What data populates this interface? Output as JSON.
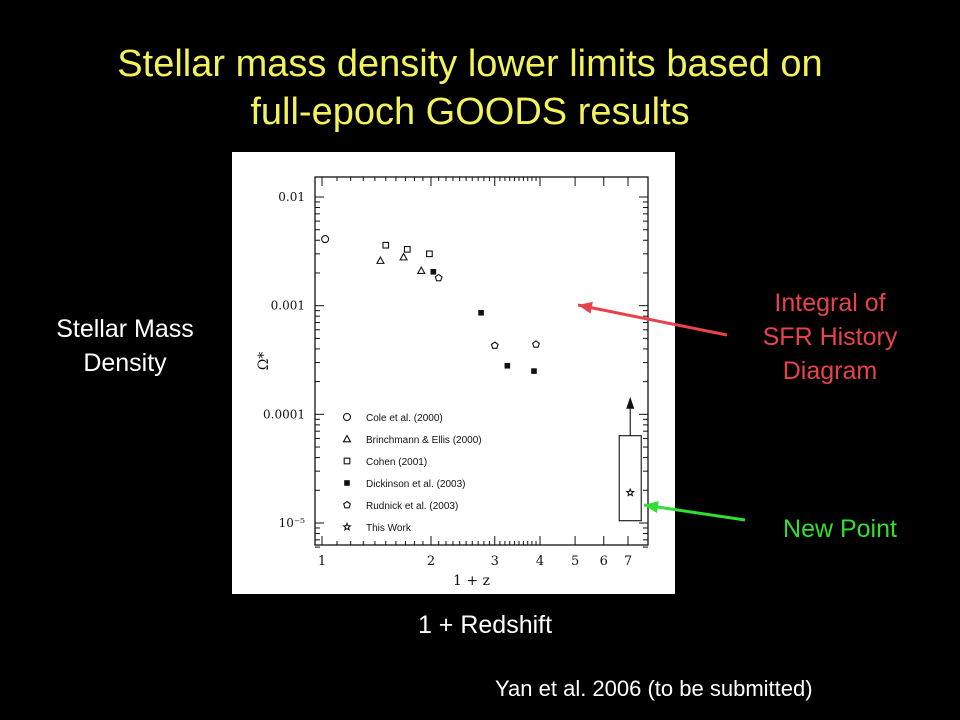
{
  "slide": {
    "title_line1": "Stellar mass density lower limits based on",
    "title_line2": "full-epoch GOODS results",
    "y_axis_label": [
      "Stellar Mass",
      "Density"
    ],
    "x_axis_label": "1 + Redshift",
    "callout_integral": [
      "Integral of",
      "SFR History",
      "Diagram"
    ],
    "callout_new_point": "New Point",
    "citation": "Yan et al. 2006 (to be submitted)",
    "colors": {
      "background": "#000000",
      "title": "#f2f25a",
      "callout_integral": "#e8434a",
      "callout_new_point": "#33dd33"
    }
  },
  "chart_data": {
    "type": "scatter",
    "xlabel": "1 + z",
    "ylabel": "Ω*",
    "x_scale": "log",
    "y_scale": "log",
    "xlim": [
      1,
      8
    ],
    "ylim": [
      6e-06,
      0.018
    ],
    "x_ticks": [
      1,
      2,
      3,
      4,
      5,
      6,
      7
    ],
    "x_tick_labels": [
      "1",
      "2",
      "3",
      "4",
      "5",
      "6",
      "7"
    ],
    "y_ticks": [
      0.01,
      0.001,
      0.0001,
      1e-05
    ],
    "y_tick_labels": [
      "0.01",
      "0.001",
      "0.0001",
      "10⁻⁵"
    ],
    "legend_position": "lower-left",
    "series": [
      {
        "name": "Cole et al. (2000)",
        "marker": "circle-open",
        "x": [
          1.02
        ],
        "y": [
          0.0041
        ]
      },
      {
        "name": "Brinchmann & Ellis (2000)",
        "marker": "triangle-open",
        "x": [
          1.45,
          1.68,
          1.88
        ],
        "y": [
          0.0026,
          0.0028,
          0.0021
        ]
      },
      {
        "name": "Cohen (2001)",
        "marker": "square-open",
        "x": [
          1.5,
          1.72,
          1.98
        ],
        "y": [
          0.0036,
          0.0033,
          0.003
        ]
      },
      {
        "name": "Dickinson et al. (2003)",
        "marker": "square-filled",
        "x": [
          2.03,
          2.75,
          3.25,
          3.85
        ],
        "y": [
          0.00205,
          0.00086,
          0.00028,
          0.00025
        ]
      },
      {
        "name": "Rudnick et al. (2003)",
        "marker": "pentagon-open",
        "x": [
          2.1,
          3.0,
          3.9
        ],
        "y": [
          0.0018,
          0.00043,
          0.00044
        ]
      },
      {
        "name": "This Work",
        "marker": "star",
        "x": [
          7.1
        ],
        "y": [
          1.9e-05
        ],
        "lower_limit": true
      }
    ]
  }
}
